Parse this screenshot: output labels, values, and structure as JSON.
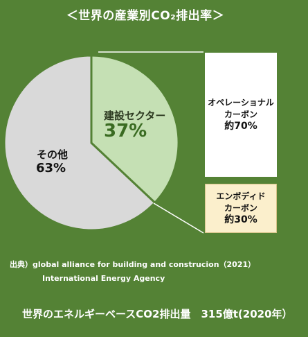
{
  "title": "＜世界の産業別CO₂排出率＞",
  "chart_data": {
    "type": "pie",
    "slices": [
      {
        "name": "建設セクター",
        "value": 37,
        "label": "37%",
        "color": "#c5e0b4"
      },
      {
        "name": "その他",
        "value": 63,
        "label": "63%",
        "color": "#d9d9d9"
      }
    ],
    "breakdown": [
      {
        "line1": "オペレーショナル",
        "line2": "カーボン",
        "value_label": "約70%",
        "value": 70
      },
      {
        "line1": "エンボディド",
        "line2": "カーボン",
        "value_label": "約30%",
        "value": 30
      }
    ]
  },
  "source": {
    "line1": "出典）global alliance for building and construcion（2021）",
    "line2": "International  Energy Agency"
  },
  "footer": "世界のエネルギーベースCO2排出量　315億t(2020年）",
  "colors": {
    "background": "#548235",
    "construction": "#c5e0b4",
    "other": "#d9d9d9",
    "operational_box": "#ffffff",
    "embodied_box": "#fbefcc",
    "connector": "#ffffff"
  }
}
